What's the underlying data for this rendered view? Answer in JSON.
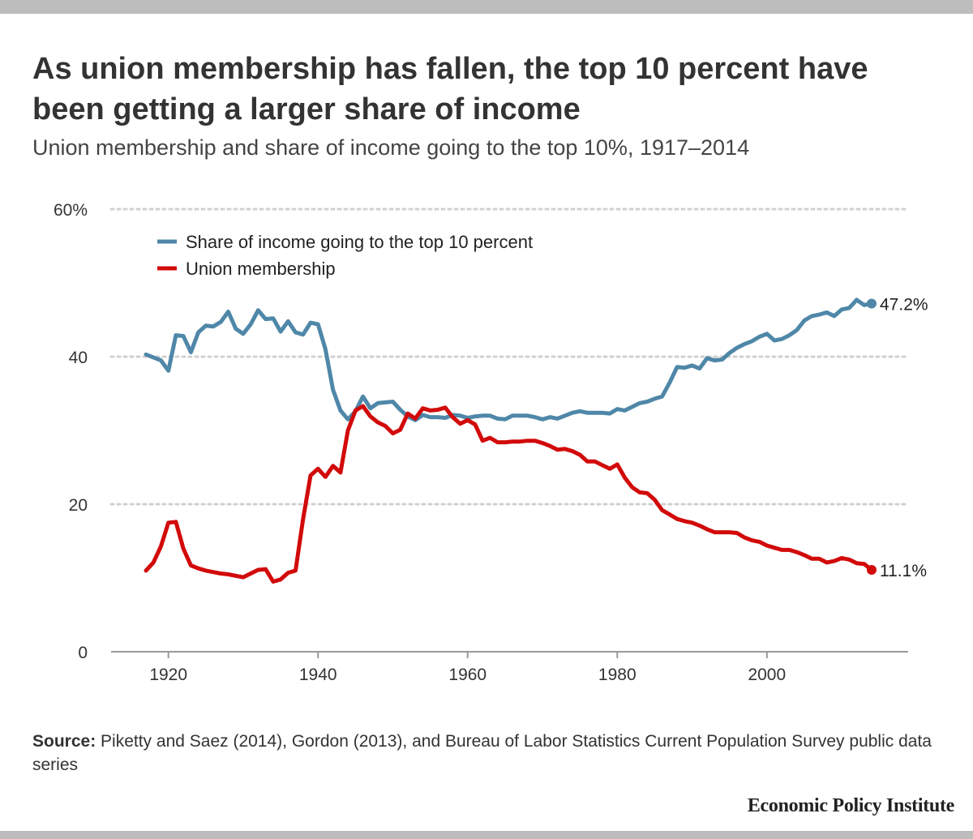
{
  "header": {
    "title": "As union membership has fallen, the top 10 percent have been getting a larger share of income",
    "subtitle": "Union membership and share of income going to the top 10%, 1917–2014"
  },
  "footer": {
    "source_label": "Source:",
    "source_text": "Piketty and Saez (2014), Gordon (2013), and Bureau of Labor Statistics Current Population Survey public data series",
    "logo": "Economic Policy Institute"
  },
  "chart_data": {
    "type": "line",
    "title": "As union membership has fallen, the top 10 percent have been getting a larger share of income",
    "subtitle": "Union membership and share of income going to the top 10%, 1917–2014",
    "xlim": [
      1911,
      2018
    ],
    "ylim": [
      0,
      60
    ],
    "y_ticks": [
      0,
      20,
      40,
      60
    ],
    "y_tick_labels": [
      "0",
      "20",
      "40",
      "60%"
    ],
    "x_ticks": [
      1920,
      1940,
      1960,
      1980,
      2000
    ],
    "x_tick_labels": [
      "1920",
      "1940",
      "1960",
      "1980",
      "2000"
    ],
    "grid": "horizontal dotted",
    "legend_position": "top-left",
    "colors": {
      "top10": "#4f87a8",
      "union": "#d20a0a",
      "grid": "#d0d0d0",
      "axis": "#999999"
    },
    "series": [
      {
        "name": "Share of income going to the top 10 percent",
        "end_label": "47.2%",
        "x": [
          1917,
          1918,
          1919,
          1920,
          1921,
          1922,
          1923,
          1924,
          1925,
          1926,
          1927,
          1928,
          1929,
          1930,
          1931,
          1932,
          1933,
          1934,
          1935,
          1936,
          1937,
          1938,
          1939,
          1940,
          1941,
          1942,
          1943,
          1944,
          1945,
          1946,
          1947,
          1948,
          1949,
          1950,
          1951,
          1952,
          1953,
          1954,
          1955,
          1956,
          1957,
          1958,
          1959,
          1960,
          1961,
          1962,
          1963,
          1964,
          1965,
          1966,
          1967,
          1968,
          1969,
          1970,
          1971,
          1972,
          1973,
          1974,
          1975,
          1976,
          1977,
          1978,
          1979,
          1980,
          1981,
          1982,
          1983,
          1984,
          1985,
          1986,
          1987,
          1988,
          1989,
          1990,
          1991,
          1992,
          1993,
          1994,
          1995,
          1996,
          1997,
          1998,
          1999,
          2000,
          2001,
          2002,
          2003,
          2004,
          2005,
          2006,
          2007,
          2008,
          2009,
          2010,
          2011,
          2012,
          2013,
          2014
        ],
        "values": [
          40.3,
          39.9,
          39.5,
          38.1,
          42.9,
          42.8,
          40.6,
          43.3,
          44.2,
          44.1,
          44.7,
          46.1,
          43.8,
          43.1,
          44.4,
          46.3,
          45.1,
          45.2,
          43.4,
          44.8,
          43.3,
          43.0,
          44.6,
          44.4,
          41.0,
          35.5,
          32.7,
          31.5,
          32.6,
          34.6,
          33.0,
          33.7,
          33.8,
          33.9,
          32.8,
          31.9,
          31.4,
          32.1,
          31.8,
          31.8,
          31.7,
          32.1,
          32.0,
          31.7,
          31.9,
          32.0,
          32.0,
          31.6,
          31.5,
          32.0,
          32.0,
          32.0,
          31.8,
          31.5,
          31.8,
          31.6,
          32.0,
          32.4,
          32.6,
          32.4,
          32.4,
          32.4,
          32.3,
          32.9,
          32.7,
          33.2,
          33.7,
          33.9,
          34.3,
          34.6,
          36.5,
          38.6,
          38.5,
          38.8,
          38.4,
          39.8,
          39.5,
          39.6,
          40.5,
          41.2,
          41.7,
          42.1,
          42.7,
          43.1,
          42.2,
          42.4,
          42.9,
          43.6,
          44.9,
          45.5,
          45.7,
          46.0,
          45.5,
          46.4,
          46.6,
          47.7,
          47.0,
          47.2
        ]
      },
      {
        "name": "Union membership",
        "end_label": "11.1%",
        "x": [
          1917,
          1918,
          1919,
          1920,
          1921,
          1922,
          1923,
          1924,
          1925,
          1926,
          1927,
          1928,
          1929,
          1930,
          1931,
          1932,
          1933,
          1934,
          1935,
          1936,
          1937,
          1938,
          1939,
          1940,
          1941,
          1942,
          1943,
          1944,
          1945,
          1946,
          1947,
          1948,
          1949,
          1950,
          1951,
          1952,
          1953,
          1954,
          1955,
          1956,
          1957,
          1958,
          1959,
          1960,
          1961,
          1962,
          1963,
          1964,
          1965,
          1966,
          1967,
          1968,
          1969,
          1970,
          1971,
          1972,
          1973,
          1974,
          1975,
          1976,
          1977,
          1978,
          1979,
          1980,
          1981,
          1982,
          1983,
          1984,
          1985,
          1986,
          1987,
          1988,
          1989,
          1990,
          1991,
          1992,
          1993,
          1994,
          1995,
          1996,
          1997,
          1998,
          1999,
          2000,
          2001,
          2002,
          2003,
          2004,
          2005,
          2006,
          2007,
          2008,
          2009,
          2010,
          2011,
          2012,
          2013,
          2014
        ],
        "values": [
          11.0,
          12.1,
          14.3,
          17.5,
          17.6,
          14.0,
          11.7,
          11.3,
          11.0,
          10.8,
          10.6,
          10.5,
          10.3,
          10.1,
          10.6,
          11.1,
          11.2,
          9.5,
          9.8,
          10.7,
          11.0,
          18.0,
          23.9,
          24.8,
          23.7,
          25.2,
          24.3,
          30.0,
          32.7,
          33.3,
          31.9,
          31.1,
          30.6,
          29.6,
          30.1,
          32.3,
          31.6,
          33.0,
          32.7,
          32.8,
          33.1,
          31.8,
          30.9,
          31.4,
          30.8,
          28.6,
          29.0,
          28.4,
          28.4,
          28.5,
          28.5,
          28.6,
          28.6,
          28.3,
          27.9,
          27.4,
          27.5,
          27.2,
          26.7,
          25.8,
          25.8,
          25.3,
          24.8,
          25.4,
          23.6,
          22.3,
          21.6,
          21.5,
          20.6,
          19.2,
          18.6,
          18.0,
          17.7,
          17.5,
          17.1,
          16.6,
          16.2,
          16.2,
          16.2,
          16.1,
          15.5,
          15.1,
          14.9,
          14.4,
          14.1,
          13.8,
          13.8,
          13.5,
          13.1,
          12.6,
          12.6,
          12.1,
          12.3,
          12.7,
          12.5,
          12.0,
          11.9,
          11.1
        ]
      }
    ]
  }
}
